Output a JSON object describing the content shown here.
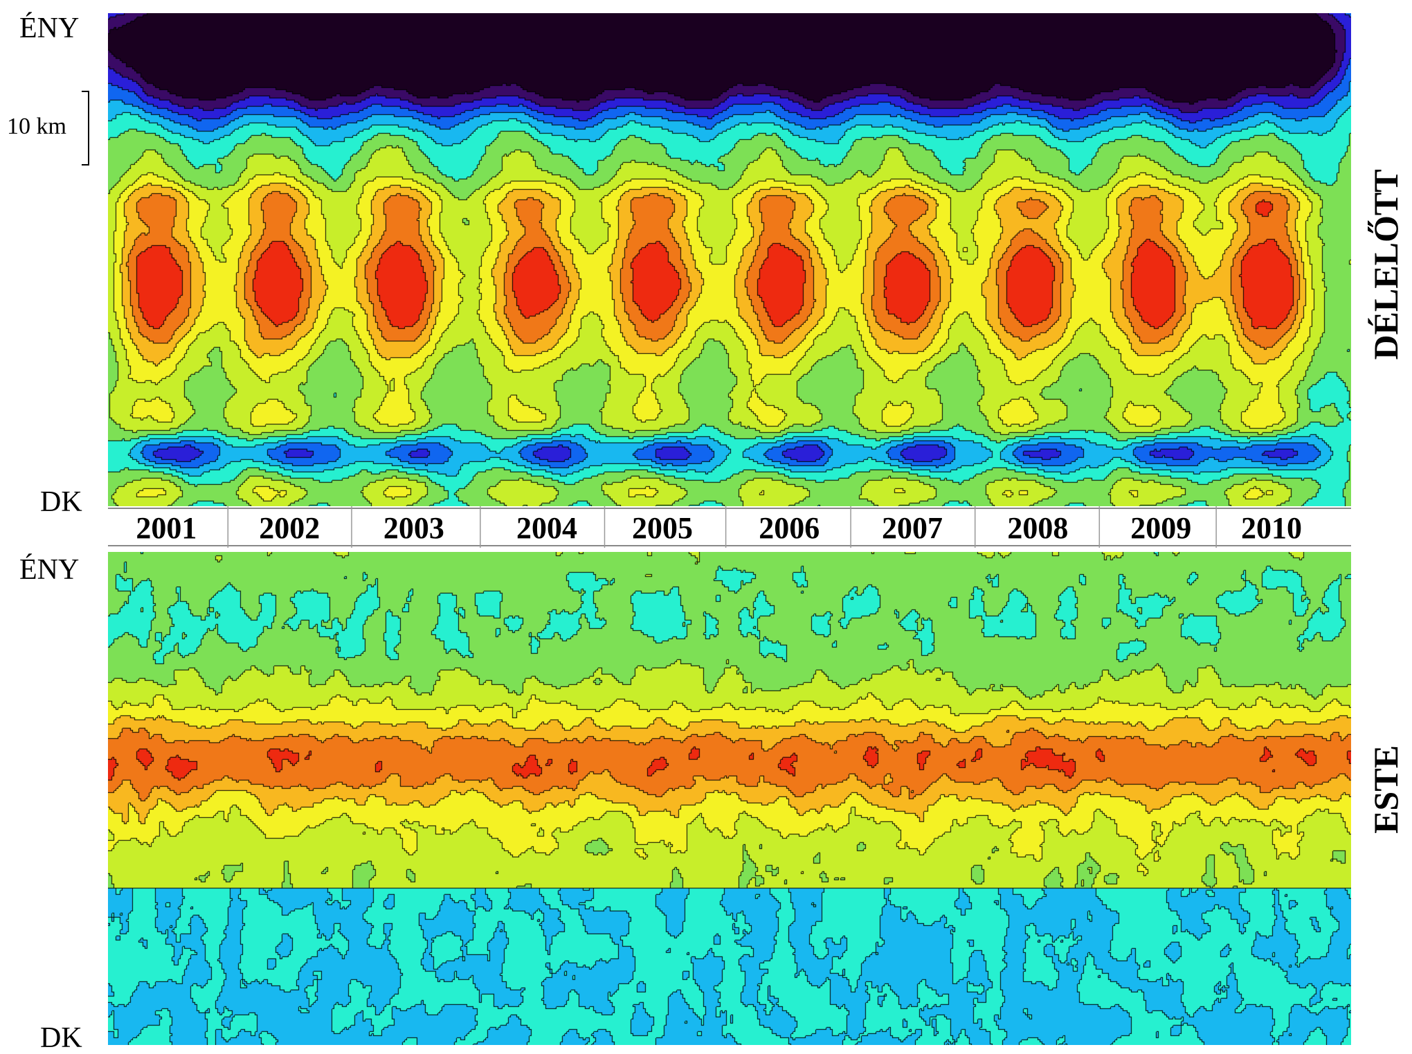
{
  "chart_data": [
    {
      "type": "heatmap",
      "panel": "top",
      "side_label": "DÉLELŐTT",
      "y_top_label": "ÉNY",
      "y_bottom_label": "DK",
      "scale_label": "10 km",
      "x_categories": [
        "2001",
        "2002",
        "2003",
        "2004",
        "2005",
        "2006",
        "2007",
        "2008",
        "2009",
        "2010"
      ],
      "contour_lines": true,
      "colormap": "jet"
    },
    {
      "type": "heatmap",
      "panel": "bottom",
      "side_label": "ESTE",
      "y_top_label": "ÉNY",
      "y_bottom_label": "DK",
      "x_categories": [
        "2001",
        "2002",
        "2003",
        "2004",
        "2005",
        "2006",
        "2007",
        "2008",
        "2009",
        "2010"
      ],
      "contour_lines": true,
      "colormap": "jet"
    }
  ],
  "colors": {
    "levels": [
      "#1a0020",
      "#3a0a66",
      "#2a1fd8",
      "#1066f0",
      "#18b8f0",
      "#26f0d0",
      "#7de055",
      "#c8ee2a",
      "#f4f224",
      "#f8b820",
      "#f07818",
      "#ee2a10"
    ],
    "contour": "#000000"
  }
}
